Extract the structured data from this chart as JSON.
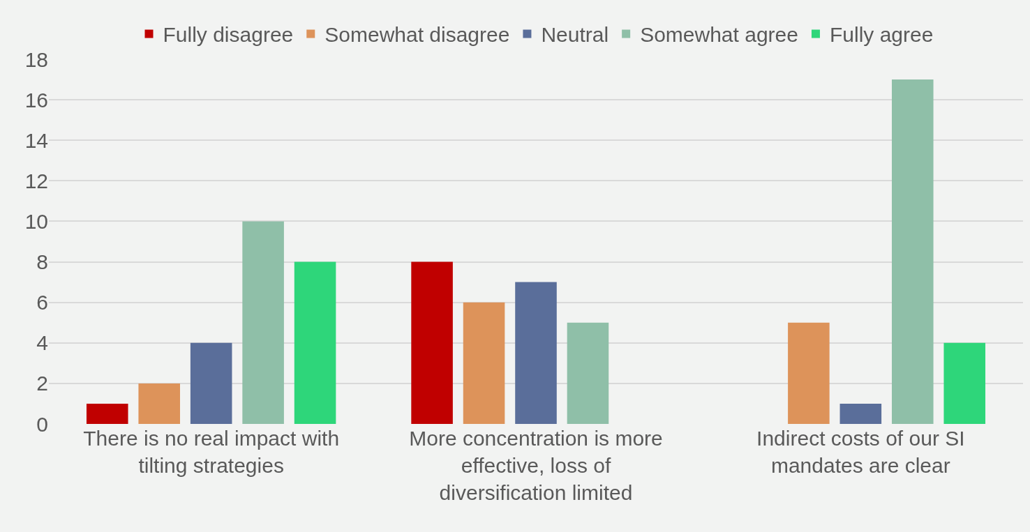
{
  "chart_data": {
    "type": "bar",
    "categories": [
      "There is no real impact with tilting strategies",
      "More concentration is more effective, loss of diversification limited",
      "Indirect costs of our SI mandates are clear"
    ],
    "series": [
      {
        "name": "Fully disagree",
        "color": "#c00000",
        "values": [
          1,
          8,
          0
        ]
      },
      {
        "name": "Somewhat disagree",
        "color": "#dd935a",
        "values": [
          2,
          6,
          5
        ]
      },
      {
        "name": "Neutral",
        "color": "#5a6e9a",
        "values": [
          4,
          7,
          1
        ]
      },
      {
        "name": "Somewhat agree",
        "color": "#8fbfa8",
        "values": [
          10,
          5,
          17
        ]
      },
      {
        "name": "Fully agree",
        "color": "#2ed67a",
        "values": [
          8,
          0,
          4
        ]
      }
    ],
    "ylim": [
      0,
      18
    ],
    "yticks": [
      0,
      2,
      4,
      6,
      8,
      10,
      12,
      14,
      16,
      18
    ],
    "grid": "y",
    "legend": "top"
  }
}
